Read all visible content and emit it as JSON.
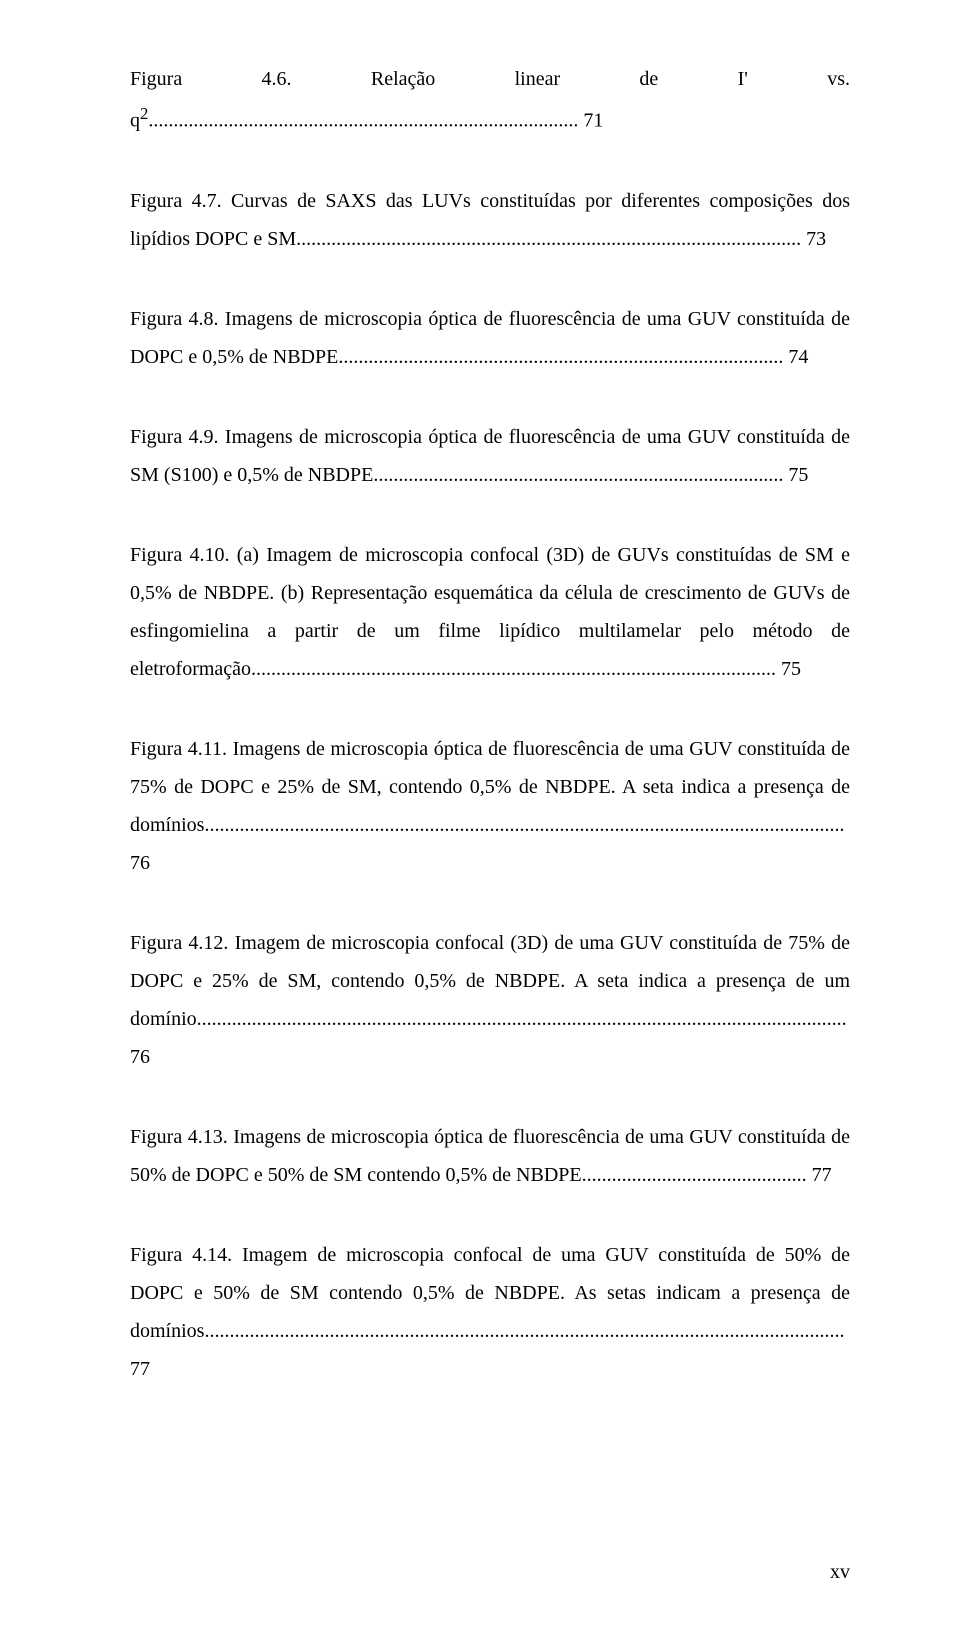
{
  "entries": [
    {
      "text_before": "Figura 4.6. Relação linear de I' vs. q",
      "sup": "2",
      "text_after": ".",
      "dots": ".....................................................................................",
      "page": " 71"
    },
    {
      "text_before": "Figura 4.7. Curvas de SAXS das LUVs constituídas por diferentes composições dos lipídios DOPC e SM.",
      "dots": "....................................................................................................",
      "page": " 73"
    },
    {
      "text_before": "Figura 4.8. Imagens de microscopia óptica de fluorescência de uma GUV constituída de DOPC e 0,5% de NBDPE.",
      "dots": "........................................................................................",
      "page": " 74"
    },
    {
      "text_before": "Figura 4.9. Imagens de microscopia óptica de fluorescência de uma GUV constituída de SM (S100) e 0,5% de NBDPE.",
      "dots": ".................................................................................",
      "page": " 75"
    },
    {
      "text_before": "Figura 4.10. (a) Imagem de microscopia confocal (3D) de GUVs constituídas de SM e 0,5% de NBDPE. (b) Representação esquemática da célula de crescimento de GUVs de esfingomielina a partir de um filme lipídico multilamelar pelo método de eletroformação.",
      "dots": "........................................................................................................",
      "page": " 75"
    },
    {
      "text_before": "Figura 4.11. Imagens de microscopia óptica de fluorescência de uma GUV constituída de 75% de DOPC e 25% de SM, contendo 0,5% de NBDPE. A seta indica a presença de domínios.",
      "dots": "...............................................................................................................................",
      "page": " 76"
    },
    {
      "text_before": "Figura 4.12. Imagem de microscopia confocal (3D) de uma GUV constituída de 75% de DOPC e 25% de SM, contendo 0,5% de NBDPE. A seta indica a presença de um domínio.",
      "dots": ".................................................................................................................................",
      "page": " 76"
    },
    {
      "text_before": "Figura 4.13. Imagens de microscopia óptica de fluorescência de uma GUV constituída de 50% de DOPC e 50% de SM contendo 0,5% de NBDPE.",
      "dots": "............................................",
      "page": " 77"
    },
    {
      "text_before": "Figura 4.14. Imagem de microscopia confocal de uma GUV constituída de 50% de DOPC e 50% de SM contendo 0,5% de NBDPE. As setas indicam a presença de domínios..",
      "dots": "..............................................................................................................................",
      "page": " 77"
    }
  ],
  "pagenum": "xv"
}
